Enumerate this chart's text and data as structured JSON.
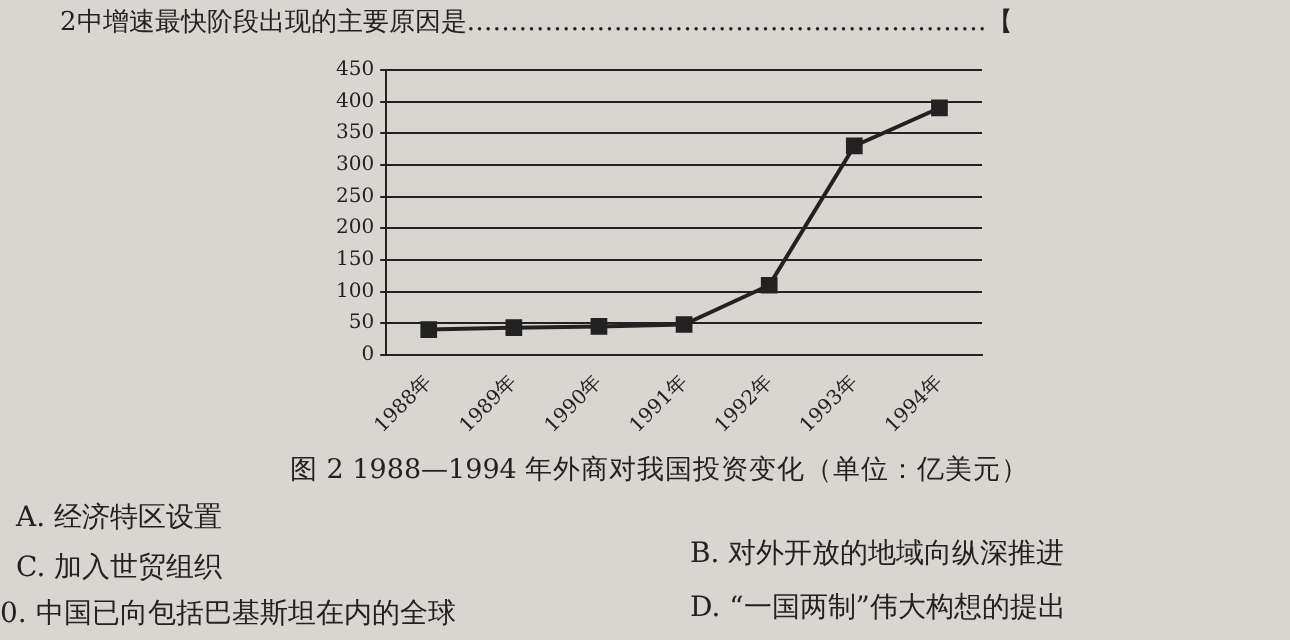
{
  "chart_data": {
    "type": "line",
    "title": "图 2 1988—1994 年外商对我国投资变化（单位：亿美元）",
    "categories": [
      "1988年",
      "1989年",
      "1990年",
      "1991年",
      "1992年",
      "1993年",
      "1994年"
    ],
    "series": [
      {
        "color": "#222222",
        "values": [
          40,
          43,
          45,
          48,
          110,
          330,
          390
        ]
      }
    ],
    "ylim": [
      0,
      450
    ],
    "yticks": [
      0,
      50,
      100,
      150,
      200,
      250,
      300,
      350,
      400,
      450
    ],
    "grid": "y",
    "marker": "square",
    "line_style": "solid",
    "legend": false,
    "annotations": [
      "2中增速最快阶段出现的主要原因是……………………………………………………【",
      "A. 经济特区设置",
      "C. 加入世贸组织",
      "B. 对外开放的地域向纵深推进",
      "D. “一国两制”伟大构想的提出",
      "0. 中国已向包括巴基斯坦在内的全球"
    ]
  }
}
